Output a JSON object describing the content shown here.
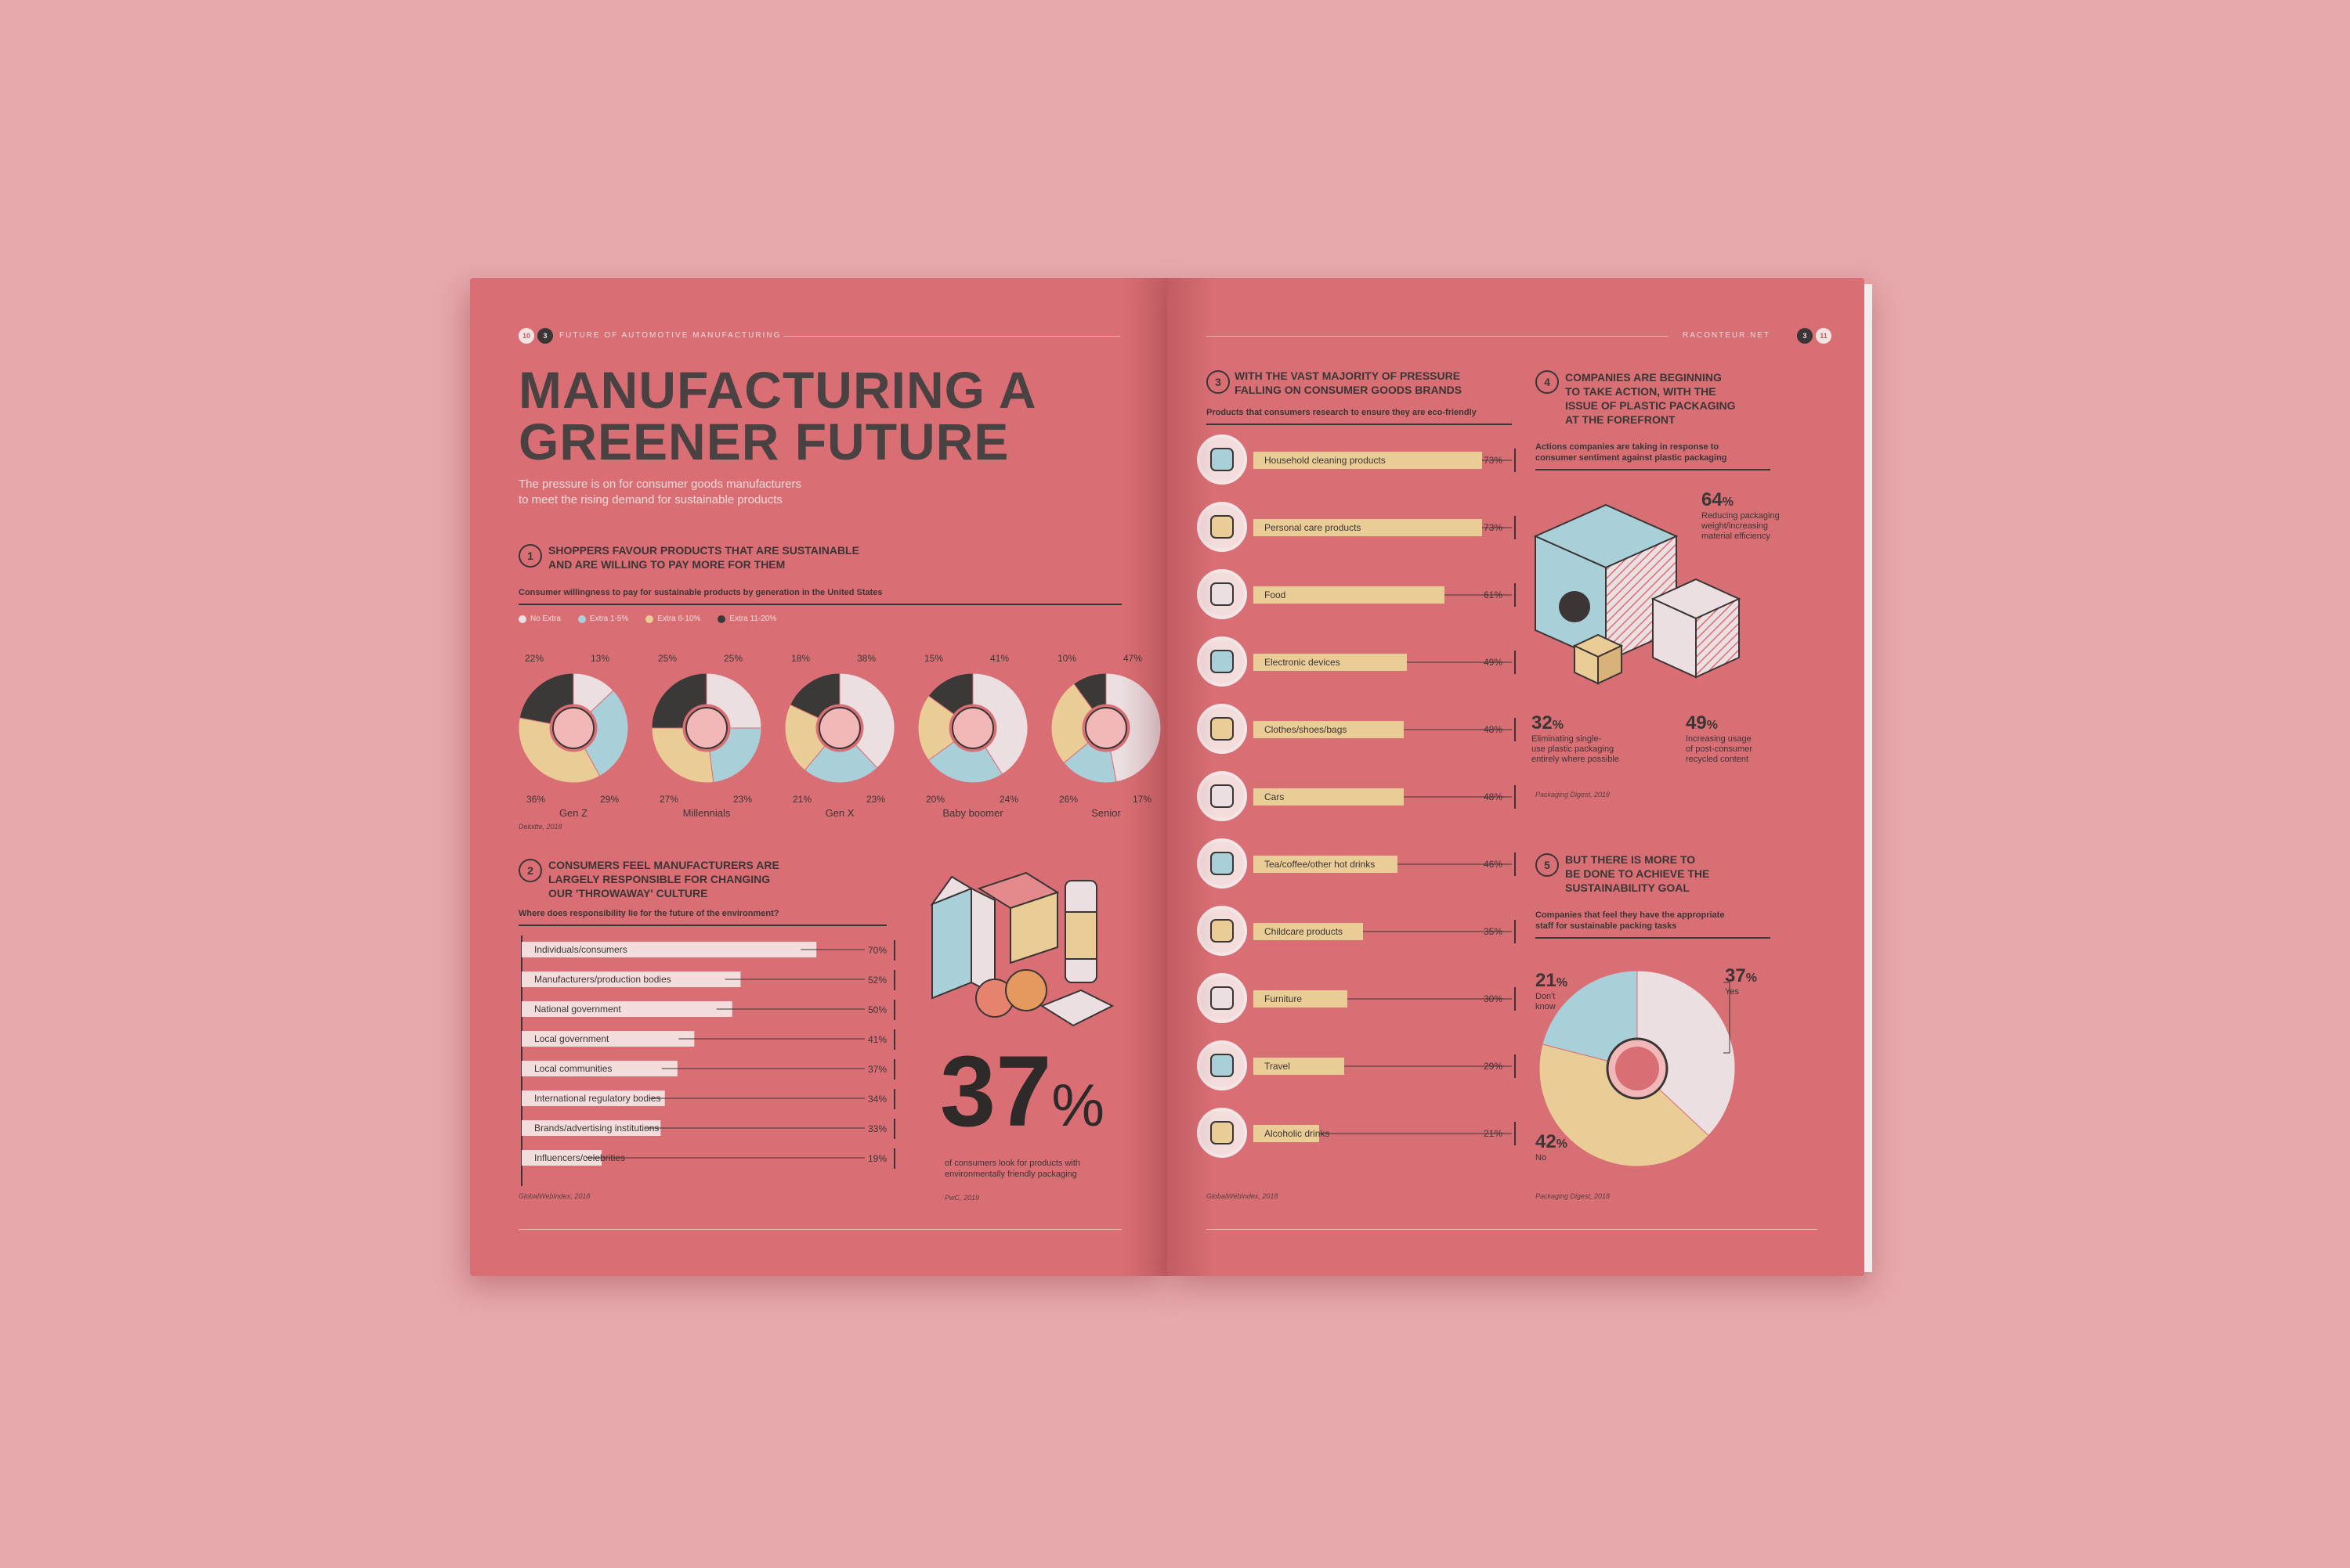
{
  "colors": {
    "white": "#ecdfe1",
    "blue": "#a9cfd9",
    "yellow": "#eacc97",
    "dark": "#3b3838",
    "pink": "#f2b8b8",
    "ink": "#3b3535"
  },
  "left": {
    "page_num": "10",
    "issue_mark": "3",
    "runner": "FUTURE OF AUTOMOTIVE MANUFACTURING",
    "title_line1": "MANUFACTURING A",
    "title_line2": "GREENER FUTURE",
    "subtitle_line1": "The pressure is on for consumer goods manufacturers",
    "subtitle_line2": "to meet the rising demand for sustainable products",
    "s1": {
      "num": "1",
      "head1": "SHOPPERS FAVOUR PRODUCTS THAT ARE SUSTAINABLE",
      "head2": "AND ARE WILLING TO PAY MORE FOR THEM",
      "caption": "Consumer willingness to pay for sustainable products by generation in the United States",
      "legend": [
        "No Extra",
        "Extra 1-5%",
        "Extra 6-10%",
        "Extra 11-20%"
      ],
      "source": "Deloitte, 2018"
    },
    "s2": {
      "num": "2",
      "head1": "CONSUMERS FEEL MANUFACTURERS ARE",
      "head2": "LARGELY RESPONSIBLE FOR CHANGING",
      "head3": "OUR 'THROWAWAY' CULTURE",
      "caption": "Where does responsibility lie for the future of the environment?",
      "source": "GlobalWebIndex, 2018"
    },
    "stat": {
      "value": "37",
      "symbol": "%",
      "text1": "of consumers look for products with",
      "text2": "environmentally friendly packaging",
      "source": "PwC, 2019"
    }
  },
  "right": {
    "site": "RACONTEUR.NET",
    "page_num": "11",
    "issue_mark": "3",
    "s3": {
      "num": "3",
      "head1": "WITH THE VAST MAJORITY OF PRESSURE",
      "head2": "FALLING ON CONSUMER GOODS BRANDS",
      "caption": "Products that consumers research to ensure they are eco-friendly",
      "source": "GlobalWebIndex, 2018"
    },
    "s4": {
      "num": "4",
      "head1": "COMPANIES ARE BEGINNING",
      "head2": "TO TAKE ACTION, WITH THE",
      "head3": "ISSUE OF PLASTIC PACKAGING",
      "head4": "AT THE FOREFRONT",
      "caption1": "Actions companies are taking in response to",
      "caption2": "consumer sentiment against plastic packaging",
      "a_val": "64",
      "a_l1": "Reducing packaging",
      "a_l2": "weight/increasing",
      "a_l3": "material efficiency",
      "b_val": "32",
      "b_l1": "Eliminating single-",
      "b_l2": "use plastic packaging",
      "b_l3": "entirely where possible",
      "c_val": "49",
      "c_l1": "Increasing usage",
      "c_l2": "of post-consumer",
      "c_l3": "recycled content",
      "source": "Packaging Digest, 2018"
    },
    "s5": {
      "num": "5",
      "head1": "BUT THERE IS MORE TO",
      "head2": "BE DONE TO ACHIEVE THE",
      "head3": "SUSTAINABILITY GOAL",
      "caption1": "Companies that feel they have the appropriate",
      "caption2": "staff for sustainable packing tasks",
      "yes_val": "37",
      "yes_lbl": "Yes",
      "dk_val": "21",
      "dk_l1": "Don't",
      "dk_l2": "know",
      "no_val": "42",
      "no_lbl": "No",
      "source": "Packaging Digest, 2018"
    }
  },
  "chart_data": [
    {
      "type": "pie",
      "title": "Consumer willingness to pay for sustainable products by generation in the United States",
      "categories": [
        "No Extra",
        "Extra 1-5%",
        "Extra 6-10%",
        "Extra 11-20%"
      ],
      "series": [
        {
          "name": "Gen Z",
          "values": [
            13,
            29,
            36,
            22
          ],
          "labels": [
            "13%",
            "29%",
            "36%",
            "22%"
          ]
        },
        {
          "name": "Millennials",
          "values": [
            25,
            23,
            27,
            25
          ],
          "labels": [
            "25%",
            "23%",
            "27%",
            "25%"
          ]
        },
        {
          "name": "Gen X",
          "values": [
            38,
            23,
            21,
            18
          ],
          "labels": [
            "38%",
            "23%",
            "21%",
            "18%"
          ]
        },
        {
          "name": "Baby boomer",
          "values": [
            41,
            24,
            20,
            15
          ],
          "labels": [
            "41%",
            "24%",
            "20%",
            "15%"
          ]
        },
        {
          "name": "Senior",
          "values": [
            47,
            17,
            26,
            10
          ],
          "labels": [
            "47%",
            "17%",
            "26%",
            "10%"
          ]
        }
      ]
    },
    {
      "type": "bar",
      "title": "Where does responsibility lie for the future of the environment?",
      "categories": [
        "Individuals/consumers",
        "Manufacturers/production bodies",
        "National government",
        "Local government",
        "Local communities",
        "International regulatory bodies",
        "Brands/advertising institutions",
        "Influencers/celebrities"
      ],
      "values": [
        70,
        52,
        50,
        41,
        37,
        34,
        33,
        19
      ],
      "labels": [
        "70%",
        "52%",
        "50%",
        "41%",
        "37%",
        "34%",
        "33%",
        "19%"
      ],
      "xlim": [
        0,
        80
      ]
    },
    {
      "type": "bar",
      "title": "Products that consumers research to ensure they are eco-friendly",
      "categories": [
        "Household cleaning products",
        "Personal care products",
        "Food",
        "Electronic devices",
        "Clothes/shoes/bags",
        "Cars",
        "Tea/coffee/other hot drinks",
        "Childcare products",
        "Furniture",
        "Travel",
        "Alcoholic drinks"
      ],
      "icons": [
        "spray-bottle-icon",
        "cream-jar-icon",
        "orange-icon",
        "smartphone-icon",
        "bag-icon",
        "car-icon",
        "cup-icon",
        "pacifier-icon",
        "cabinet-icon",
        "suitcase-icon",
        "bottle-icon"
      ],
      "values": [
        73,
        73,
        61,
        49,
        48,
        48,
        46,
        35,
        30,
        29,
        21
      ],
      "labels": [
        "73%",
        "73%",
        "61%",
        "49%",
        "48%",
        "48%",
        "46%",
        "35%",
        "30%",
        "29%",
        "21%"
      ],
      "xlim": [
        0,
        80
      ]
    },
    {
      "type": "pie",
      "title": "Companies that feel they have the appropriate staff for sustainable packing tasks",
      "categories": [
        "Yes",
        "No",
        "Don't know"
      ],
      "values": [
        37,
        42,
        21
      ]
    }
  ]
}
